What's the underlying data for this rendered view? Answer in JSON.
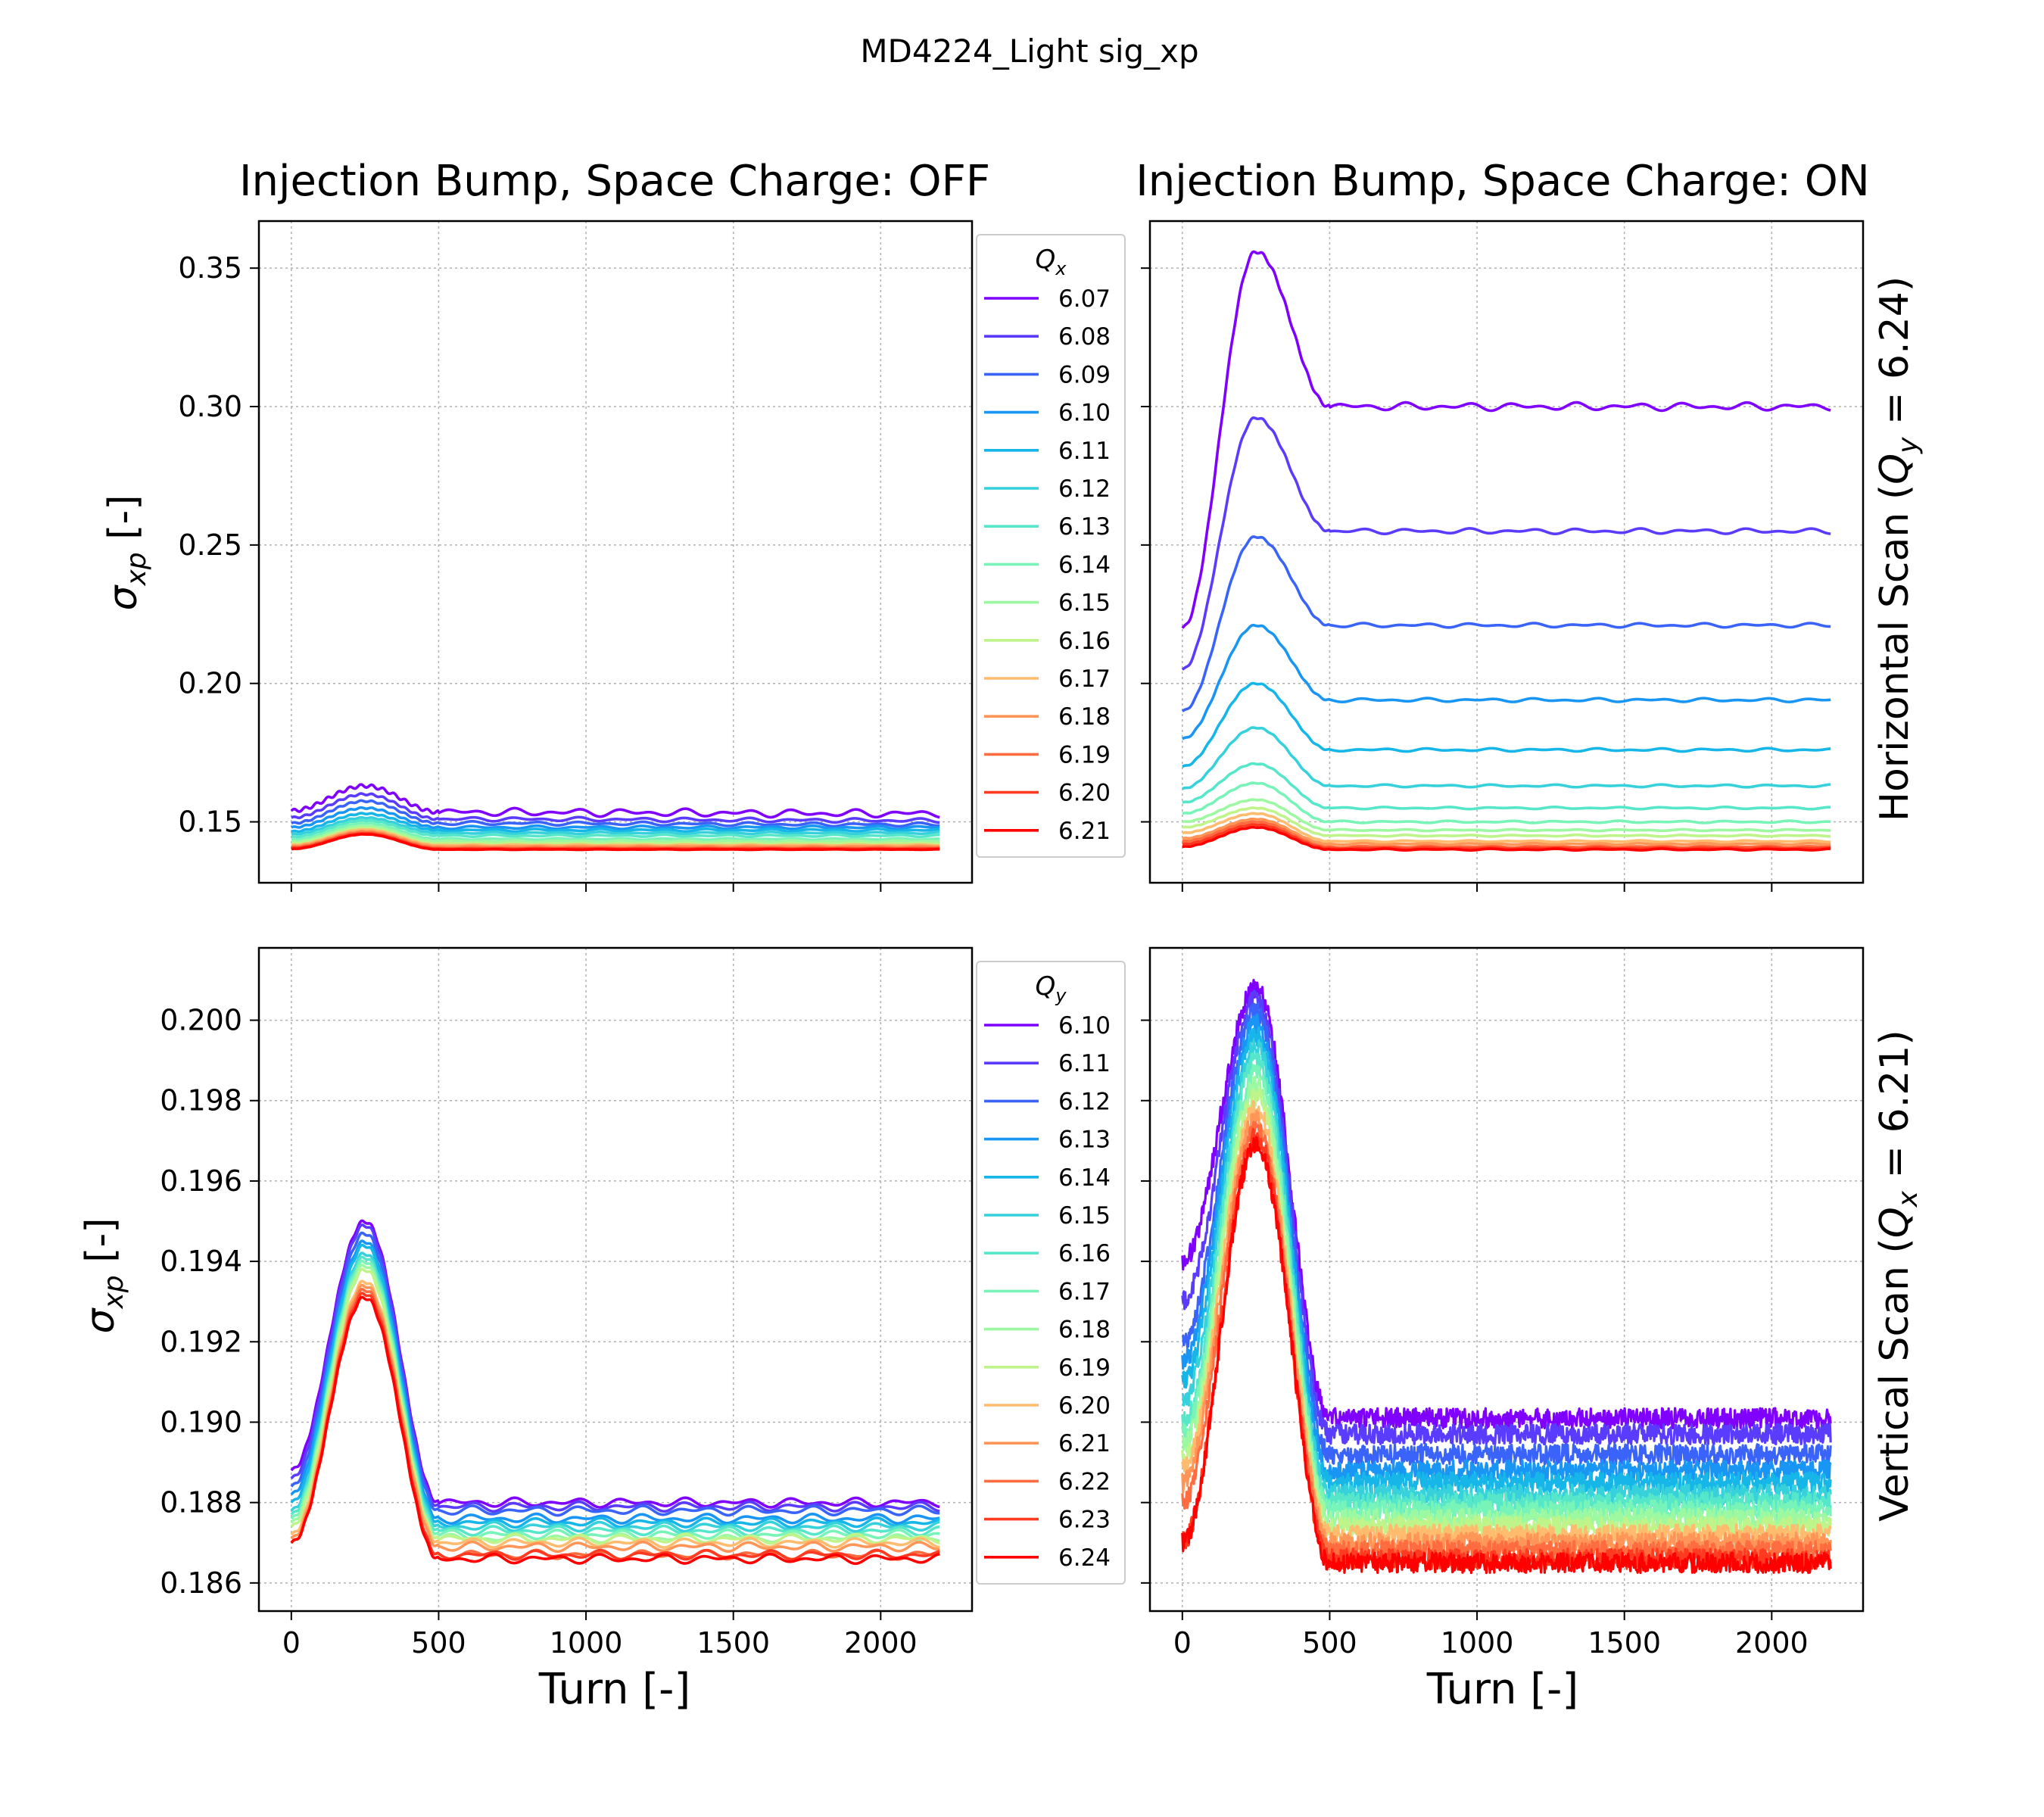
{
  "figure": {
    "suptitle": "MD4224_Light sig_xp"
  },
  "panel_titles": {
    "left": "Injection Bump, Space Charge: OFF",
    "right": "Injection Bump, Space Charge: ON"
  },
  "row_labels": {
    "top": "Horizontal Scan (Q_y = 6.24)",
    "bottom": "Vertical Scan (Q_x = 6.21)"
  },
  "axis_labels": {
    "x": "Turn [-]",
    "y": "σ_xp [-]"
  },
  "legends": {
    "top": {
      "title": "Q_x",
      "entries": [
        "6.07",
        "6.08",
        "6.09",
        "6.10",
        "6.11",
        "6.12",
        "6.13",
        "6.14",
        "6.15",
        "6.16",
        "6.17",
        "6.18",
        "6.19",
        "6.20",
        "6.21"
      ]
    },
    "bottom": {
      "title": "Q_y",
      "entries": [
        "6.10",
        "6.11",
        "6.12",
        "6.13",
        "6.14",
        "6.15",
        "6.16",
        "6.17",
        "6.18",
        "6.19",
        "6.20",
        "6.21",
        "6.22",
        "6.23",
        "6.24"
      ]
    }
  },
  "chart_data": [
    {
      "type": "line",
      "id": "top-left",
      "title": "Injection Bump, Space Charge: OFF",
      "xlabel": "",
      "ylabel": "σ_xp [-]",
      "xlim": [
        -110,
        2310
      ],
      "ylim": [
        0.128,
        0.367
      ],
      "xticks": [
        0,
        500,
        1000,
        1500,
        2000
      ],
      "yticks": [
        0.15,
        0.2,
        0.25,
        0.3,
        0.35
      ],
      "ytick_labels": [
        "0.15",
        "0.20",
        "0.25",
        "0.30",
        "0.35"
      ],
      "show_xtick_labels": false,
      "grid": true,
      "legend": "outside-right",
      "x_breakpoints": [
        0,
        250,
        500,
        2200
      ],
      "series": [
        {
          "name": "6.07",
          "color": "#8000ff",
          "values": [
            0.154,
            0.163,
            0.1535,
            0.153
          ],
          "oscillation": 0.0015
        },
        {
          "name": "6.08",
          "color": "#5a3cfe",
          "values": [
            0.1515,
            0.16,
            0.151,
            0.1505
          ],
          "oscillation": 0.0008
        },
        {
          "name": "6.09",
          "color": "#3a64f9",
          "values": [
            0.1495,
            0.1575,
            0.1495,
            0.149
          ],
          "oscillation": 0.0007
        },
        {
          "name": "6.10",
          "color": "#1996f3",
          "values": [
            0.148,
            0.155,
            0.148,
            0.148
          ],
          "oscillation": 0.0006
        },
        {
          "name": "6.11",
          "color": "#16b6e8",
          "values": [
            0.1465,
            0.153,
            0.147,
            0.147
          ],
          "oscillation": 0.0005
        },
        {
          "name": "6.12",
          "color": "#36d1db",
          "values": [
            0.1455,
            0.1515,
            0.146,
            0.146
          ],
          "oscillation": 0.0004
        },
        {
          "name": "6.13",
          "color": "#56e7cb",
          "values": [
            0.1445,
            0.1505,
            0.145,
            0.145
          ],
          "oscillation": 0.0004
        },
        {
          "name": "6.14",
          "color": "#78f4b8",
          "values": [
            0.1435,
            0.1495,
            0.1438,
            0.1438
          ],
          "oscillation": 0.0003
        },
        {
          "name": "6.15",
          "color": "#9cf9a2",
          "values": [
            0.1428,
            0.1485,
            0.143,
            0.143
          ],
          "oscillation": 0.0003
        },
        {
          "name": "6.16",
          "color": "#bef489",
          "values": [
            0.1422,
            0.1478,
            0.1422,
            0.1422
          ],
          "oscillation": 0.0002
        },
        {
          "name": "6.17",
          "color": "#ffbb6e",
          "values": [
            0.1416,
            0.1472,
            0.1416,
            0.1416
          ],
          "oscillation": 0.0002
        },
        {
          "name": "6.18",
          "color": "#ff9658",
          "values": [
            0.1412,
            0.1466,
            0.1411,
            0.1411
          ],
          "oscillation": 0.0002
        },
        {
          "name": "6.19",
          "color": "#ff6c3f",
          "values": [
            0.1408,
            0.1462,
            0.1406,
            0.1406
          ],
          "oscillation": 0.0002
        },
        {
          "name": "6.20",
          "color": "#ff3a20",
          "values": [
            0.1405,
            0.1458,
            0.1403,
            0.1403
          ],
          "oscillation": 0.0001
        },
        {
          "name": "6.21",
          "color": "#ff0000",
          "values": [
            0.1402,
            0.1455,
            0.14,
            0.14
          ],
          "oscillation": 0.0001
        }
      ]
    },
    {
      "type": "line",
      "id": "top-right",
      "title": "Injection Bump, Space Charge: ON",
      "xlabel": "",
      "ylabel": "",
      "xlim": [
        -110,
        2310
      ],
      "ylim": [
        0.128,
        0.367
      ],
      "xticks": [
        0,
        500,
        1000,
        1500,
        2000
      ],
      "yticks": [
        0.15,
        0.2,
        0.25,
        0.3,
        0.35
      ],
      "show_xtick_labels": false,
      "show_ytick_labels": false,
      "grid": true,
      "x_breakpoints": [
        0,
        250,
        500,
        2200
      ],
      "series": [
        {
          "name": "6.07",
          "color": "#8000ff",
          "values": [
            0.22,
            0.356,
            0.3,
            0.3
          ],
          "oscillation": 0.0015
        },
        {
          "name": "6.08",
          "color": "#5a3cfe",
          "values": [
            0.205,
            0.296,
            0.255,
            0.255
          ],
          "oscillation": 0.001
        },
        {
          "name": "6.09",
          "color": "#3a64f9",
          "values": [
            0.19,
            0.253,
            0.221,
            0.221
          ],
          "oscillation": 0.0008
        },
        {
          "name": "6.10",
          "color": "#1996f3",
          "values": [
            0.18,
            0.221,
            0.194,
            0.194
          ],
          "oscillation": 0.0007
        },
        {
          "name": "6.11",
          "color": "#16b6e8",
          "values": [
            0.17,
            0.2,
            0.176,
            0.176
          ],
          "oscillation": 0.0006
        },
        {
          "name": "6.12",
          "color": "#36d1db",
          "values": [
            0.162,
            0.184,
            0.163,
            0.163
          ],
          "oscillation": 0.0005
        },
        {
          "name": "6.13",
          "color": "#56e7cb",
          "values": [
            0.157,
            0.171,
            0.155,
            0.155
          ],
          "oscillation": 0.0004
        },
        {
          "name": "6.14",
          "color": "#78f4b8",
          "values": [
            0.153,
            0.164,
            0.15,
            0.15
          ],
          "oscillation": 0.0004
        },
        {
          "name": "6.15",
          "color": "#9cf9a2",
          "values": [
            0.15,
            0.158,
            0.147,
            0.147
          ],
          "oscillation": 0.0003
        },
        {
          "name": "6.16",
          "color": "#bef489",
          "values": [
            0.148,
            0.155,
            0.145,
            0.145
          ],
          "oscillation": 0.0003
        },
        {
          "name": "6.17",
          "color": "#ffbb6e",
          "values": [
            0.146,
            0.153,
            0.143,
            0.143
          ],
          "oscillation": 0.0003
        },
        {
          "name": "6.18",
          "color": "#ff9658",
          "values": [
            0.144,
            0.151,
            0.142,
            0.142
          ],
          "oscillation": 0.0003
        },
        {
          "name": "6.19",
          "color": "#ff6c3f",
          "values": [
            0.143,
            0.15,
            0.141,
            0.141
          ],
          "oscillation": 0.0003
        },
        {
          "name": "6.20",
          "color": "#ff3a20",
          "values": [
            0.142,
            0.149,
            0.1405,
            0.1405
          ],
          "oscillation": 0.0003
        },
        {
          "name": "6.21",
          "color": "#ff0000",
          "values": [
            0.141,
            0.148,
            0.14,
            0.14
          ],
          "oscillation": 0.0003
        }
      ]
    },
    {
      "type": "line",
      "id": "bottom-left",
      "title": "",
      "xlabel": "Turn [-]",
      "ylabel": "σ_xp [-]",
      "xlim": [
        -110,
        2310
      ],
      "ylim": [
        0.1853,
        0.2018
      ],
      "xticks": [
        0,
        500,
        1000,
        1500,
        2000
      ],
      "xtick_labels": [
        "0",
        "500",
        "1000",
        "1500",
        "2000"
      ],
      "yticks": [
        0.186,
        0.188,
        0.19,
        0.192,
        0.194,
        0.196,
        0.198,
        0.2
      ],
      "ytick_labels": [
        "0.186",
        "0.188",
        "0.190",
        "0.192",
        "0.194",
        "0.196",
        "0.198",
        "0.200"
      ],
      "grid": true,
      "legend": "outside-right",
      "x_breakpoints": [
        0,
        250,
        500,
        2200
      ],
      "series": [
        {
          "name": "6.10",
          "color": "#8000ff",
          "values": [
            0.1888,
            0.195,
            0.188,
            0.188
          ],
          "oscillation": 0.00012
        },
        {
          "name": "6.11",
          "color": "#5a3cfe",
          "values": [
            0.1886,
            0.1949,
            0.1879,
            0.1879
          ],
          "oscillation": 0.00012
        },
        {
          "name": "6.12",
          "color": "#3a64f9",
          "values": [
            0.1884,
            0.1947,
            0.1878,
            0.1878
          ],
          "oscillation": 0.00012
        },
        {
          "name": "6.13",
          "color": "#1996f3",
          "values": [
            0.1882,
            0.1945,
            0.1876,
            0.1876
          ],
          "oscillation": 0.00012
        },
        {
          "name": "6.14",
          "color": "#16b6e8",
          "values": [
            0.188,
            0.1944,
            0.1875,
            0.1875
          ],
          "oscillation": 0.00012
        },
        {
          "name": "6.15",
          "color": "#36d1db",
          "values": [
            0.1878,
            0.1942,
            0.1874,
            0.1874
          ],
          "oscillation": 0.00012
        },
        {
          "name": "6.16",
          "color": "#56e7cb",
          "values": [
            0.1877,
            0.1941,
            0.1873,
            0.1873
          ],
          "oscillation": 0.00012
        },
        {
          "name": "6.17",
          "color": "#78f4b8",
          "values": [
            0.1876,
            0.194,
            0.1872,
            0.1872
          ],
          "oscillation": 0.00012
        },
        {
          "name": "6.18",
          "color": "#9cf9a2",
          "values": [
            0.1875,
            0.1939,
            0.1871,
            0.1871
          ],
          "oscillation": 0.00012
        },
        {
          "name": "6.19",
          "color": "#bef489",
          "values": [
            0.1874,
            0.1938,
            0.1871,
            0.1871
          ],
          "oscillation": 0.00012
        },
        {
          "name": "6.20",
          "color": "#ffbb6e",
          "values": [
            0.1872,
            0.1935,
            0.187,
            0.187
          ],
          "oscillation": 0.00012
        },
        {
          "name": "6.21",
          "color": "#ff9658",
          "values": [
            0.1871,
            0.1934,
            0.1869,
            0.1869
          ],
          "oscillation": 0.00012
        },
        {
          "name": "6.22",
          "color": "#ff6c3f",
          "values": [
            0.187,
            0.1933,
            0.1867,
            0.1867
          ],
          "oscillation": 0.00012
        },
        {
          "name": "6.23",
          "color": "#ff3a20",
          "values": [
            0.187,
            0.1932,
            0.1867,
            0.1867
          ],
          "oscillation": 0.00012
        },
        {
          "name": "6.24",
          "color": "#ff0000",
          "values": [
            0.187,
            0.1931,
            0.1866,
            0.1866
          ],
          "oscillation": 0.00012
        }
      ]
    },
    {
      "type": "line",
      "id": "bottom-right",
      "title": "",
      "xlabel": "Turn [-]",
      "ylabel": "",
      "xlim": [
        -110,
        2310
      ],
      "ylim": [
        0.1853,
        0.2018
      ],
      "xticks": [
        0,
        500,
        1000,
        1500,
        2000
      ],
      "xtick_labels": [
        "0",
        "500",
        "1000",
        "1500",
        "2000"
      ],
      "yticks": [
        0.186,
        0.188,
        0.19,
        0.192,
        0.194,
        0.196,
        0.198,
        0.2
      ],
      "show_ytick_labels": false,
      "grid": true,
      "x_breakpoints": [
        0,
        250,
        500,
        2200
      ],
      "series": [
        {
          "name": "6.10",
          "color": "#8000ff",
          "values": [
            0.194,
            0.2008,
            0.1901,
            0.1901
          ],
          "noise": 0.00025
        },
        {
          "name": "6.11",
          "color": "#5a3cfe",
          "values": [
            0.193,
            0.2005,
            0.1897,
            0.1897
          ],
          "noise": 0.00025
        },
        {
          "name": "6.12",
          "color": "#3a64f9",
          "values": [
            0.192,
            0.2002,
            0.1892,
            0.1892
          ],
          "noise": 0.00025
        },
        {
          "name": "6.13",
          "color": "#1996f3",
          "values": [
            0.1915,
            0.1999,
            0.1888,
            0.1888
          ],
          "noise": 0.00025
        },
        {
          "name": "6.14",
          "color": "#16b6e8",
          "values": [
            0.191,
            0.1996,
            0.1885,
            0.1885
          ],
          "noise": 0.00025
        },
        {
          "name": "6.15",
          "color": "#36d1db",
          "values": [
            0.1905,
            0.1993,
            0.1882,
            0.1882
          ],
          "noise": 0.00025
        },
        {
          "name": "6.16",
          "color": "#56e7cb",
          "values": [
            0.19,
            0.199,
            0.188,
            0.188
          ],
          "noise": 0.00025
        },
        {
          "name": "6.17",
          "color": "#78f4b8",
          "values": [
            0.1897,
            0.1987,
            0.1878,
            0.1878
          ],
          "noise": 0.00025
        },
        {
          "name": "6.18",
          "color": "#9cf9a2",
          "values": [
            0.1894,
            0.1984,
            0.1876,
            0.1876
          ],
          "noise": 0.00025
        },
        {
          "name": "6.19",
          "color": "#bef489",
          "values": [
            0.1891,
            0.1981,
            0.1874,
            0.1874
          ],
          "noise": 0.00025
        },
        {
          "name": "6.20",
          "color": "#ffbb6e",
          "values": [
            0.1888,
            0.1978,
            0.1872,
            0.1872
          ],
          "noise": 0.00025
        },
        {
          "name": "6.21",
          "color": "#ff9658",
          "values": [
            0.1885,
            0.1975,
            0.187,
            0.187
          ],
          "noise": 0.00025
        },
        {
          "name": "6.22",
          "color": "#ff6c3f",
          "values": [
            0.188,
            0.1973,
            0.1868,
            0.1868
          ],
          "noise": 0.00025
        },
        {
          "name": "6.23",
          "color": "#ff3a20",
          "values": [
            0.187,
            0.1971,
            0.1866,
            0.1866
          ],
          "noise": 0.00025
        },
        {
          "name": "6.24",
          "color": "#ff0000",
          "values": [
            0.187,
            0.1969,
            0.1865,
            0.1865
          ],
          "noise": 0.00025
        }
      ]
    }
  ]
}
